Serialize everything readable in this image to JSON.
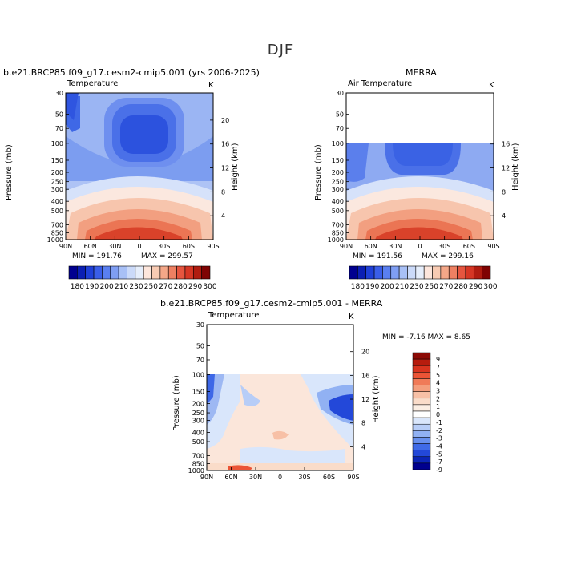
{
  "figure": {
    "suptitle": "DJF"
  },
  "chart_data": [
    {
      "type": "heatmap",
      "title": "b.e21.BRCP85.f09_g17.cesm2-cmip5.001 (yrs 2006-2025)",
      "variable": "Temperature",
      "units": "K",
      "ylabel": "Pressure (mb)",
      "ylabel_right": "Height (km)",
      "x_ticks": [
        "90N",
        "60N",
        "30N",
        "0",
        "30S",
        "60S",
        "90S"
      ],
      "y_ticks": [
        "30",
        "50",
        "70",
        "100",
        "150",
        "200",
        "250",
        "300",
        "400",
        "500",
        "700",
        "850",
        "1000"
      ],
      "right_ticks": [
        "20",
        "16",
        "12",
        "8",
        "4"
      ],
      "min_label": "MIN = 191.76",
      "max_label": "MAX = 299.57",
      "data_top_pressure": 30,
      "cold_center": {
        "lat": 0,
        "pressure": 100,
        "value": 191.76
      }
    },
    {
      "type": "heatmap",
      "title": "MERRA",
      "variable": "Air Temperature",
      "units": "K",
      "ylabel": "Pressure (mb)",
      "ylabel_right": "Height (km)",
      "x_ticks": [
        "90N",
        "60N",
        "30N",
        "0",
        "30S",
        "60S",
        "90S"
      ],
      "y_ticks": [
        "30",
        "50",
        "70",
        "100",
        "150",
        "200",
        "250",
        "300",
        "400",
        "500",
        "700",
        "850",
        "1000"
      ],
      "right_ticks": [
        "16",
        "12",
        "8",
        "4"
      ],
      "min_label": "MIN = 191.56",
      "max_label": "MAX = 299.16",
      "data_top_pressure": 100
    },
    {
      "type": "heatmap",
      "title": "b.e21.BRCP85.f09_g17.cesm2-cmip5.001 - MERRA",
      "variable": "Temperature",
      "units": "K",
      "ylabel": "Pressure (mb)",
      "ylabel_right": "Height (km)",
      "x_ticks": [
        "90N",
        "60N",
        "30N",
        "0",
        "30S",
        "60S",
        "90S"
      ],
      "y_ticks": [
        "30",
        "50",
        "70",
        "100",
        "150",
        "200",
        "250",
        "300",
        "400",
        "500",
        "700",
        "850",
        "1000"
      ],
      "right_ticks": [
        "20",
        "16",
        "12",
        "8",
        "4"
      ],
      "minmax_label": "MIN =  -7.16   MAX =   8.65",
      "data_top_pressure": 100
    }
  ],
  "colorbars": {
    "temperature": {
      "labels": [
        "180",
        "190",
        "200",
        "210",
        "230",
        "250",
        "270",
        "280",
        "290",
        "300"
      ],
      "colors": [
        "#00008f",
        "#0b1fb4",
        "#1f40d8",
        "#3a5ee9",
        "#5a7ff0",
        "#7f9ef3",
        "#a8c0f6",
        "#cbdaf9",
        "#e6eefb",
        "#fde6dc",
        "#f8cbb3",
        "#f4a788",
        "#ee8062",
        "#e6553f",
        "#d63624",
        "#b01c10",
        "#7f0303"
      ]
    },
    "difference": {
      "labels": [
        "9",
        "7",
        "5",
        "4",
        "3",
        "2",
        "1",
        "0",
        "-1",
        "-2",
        "-3",
        "-4",
        "-5",
        "-7",
        "-9"
      ],
      "colors": [
        "#8b0a05",
        "#b71c0e",
        "#d8341f",
        "#eb5436",
        "#f07a58",
        "#f49e7d",
        "#f7c0a6",
        "#fadcc9",
        "#fbeee3",
        "#ffffff",
        "#d9e6fb",
        "#b7cdf7",
        "#91b1f3",
        "#6890ee",
        "#3f6ae7",
        "#2348d9",
        "#0c25b6",
        "#00008e"
      ]
    }
  }
}
